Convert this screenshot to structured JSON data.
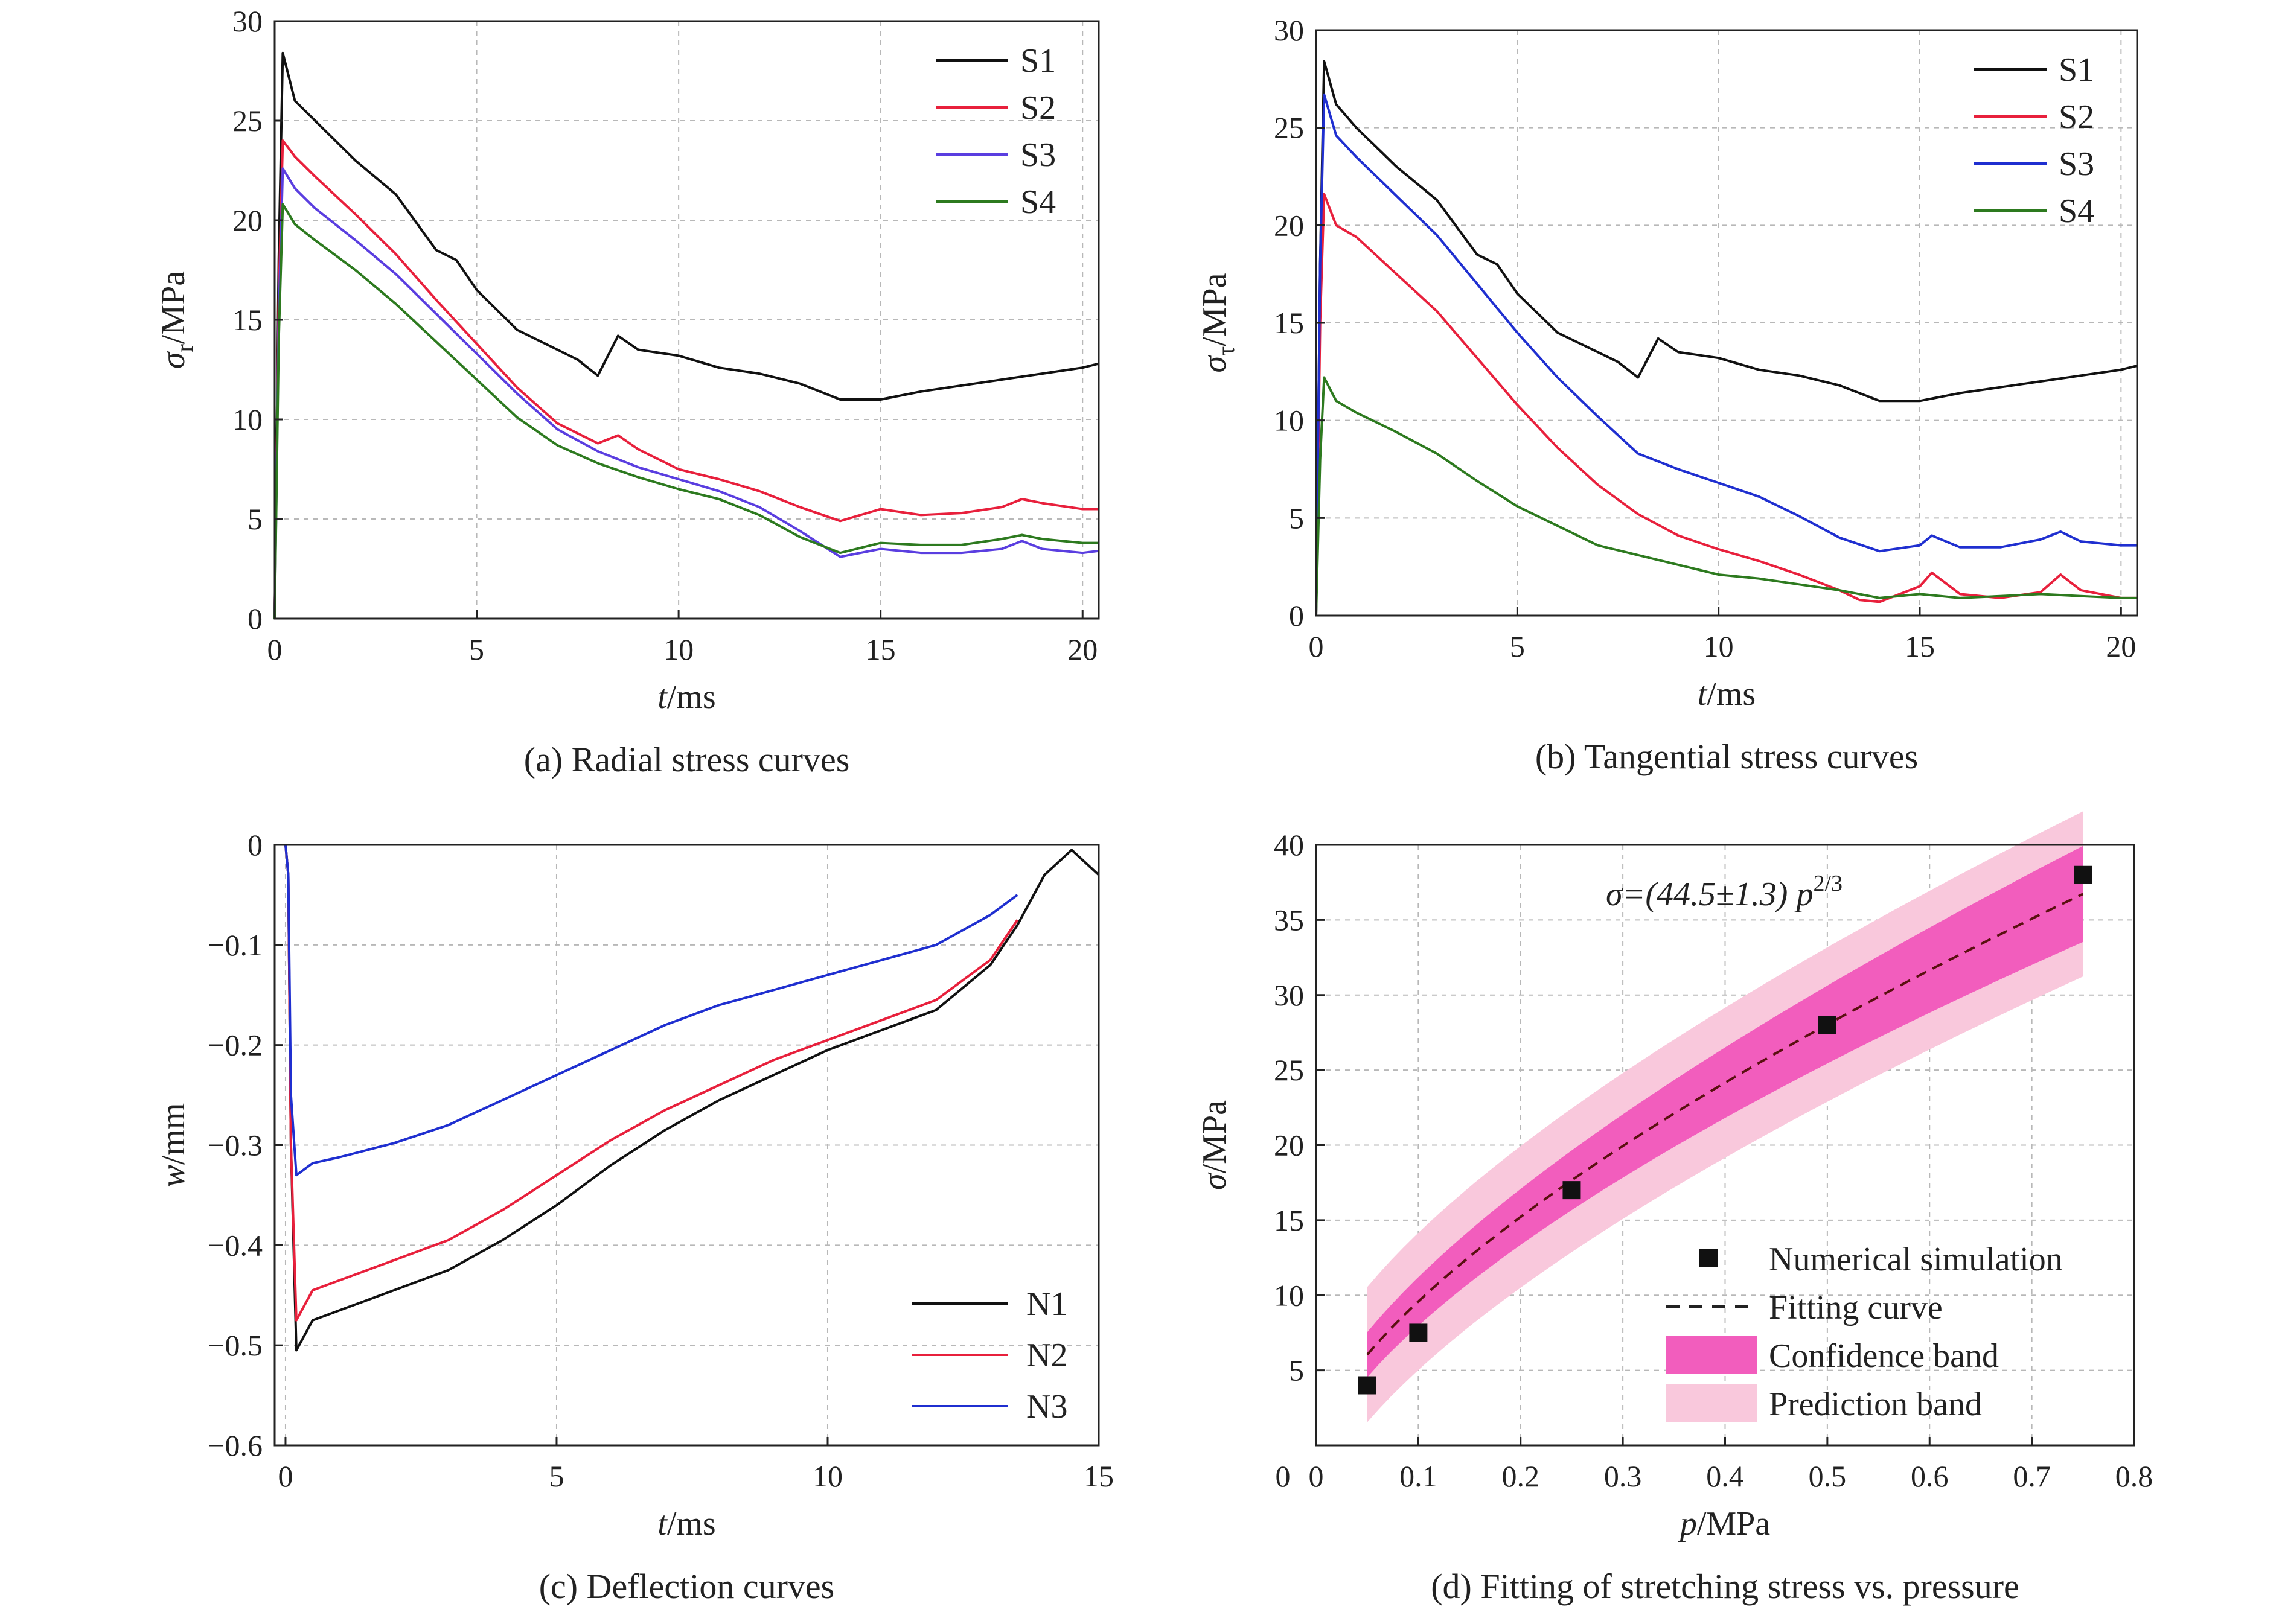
{
  "chart_data": [
    {
      "type": "line",
      "caption": "(a) Radial stress curves",
      "xlabel": "t/ms",
      "ylabel": "σr/MPa",
      "xlim": [
        0,
        20.4
      ],
      "ylim": [
        0,
        30
      ],
      "xticks": [
        "0",
        "5",
        "10",
        "15",
        "20"
      ],
      "yticks": [
        "0",
        "5",
        "10",
        "15",
        "20",
        "25",
        "30"
      ],
      "grid": true,
      "legend_position": "top-right",
      "series": [
        {
          "name": "S1",
          "color": "#111111",
          "x": [
            0,
            0.1,
            0.2,
            0.5,
            1,
            2,
            3,
            4,
            4.5,
            5,
            6,
            7,
            7.5,
            8,
            8.5,
            9,
            10,
            11,
            12,
            13,
            14,
            15,
            16,
            17,
            18,
            19,
            20,
            20.4
          ],
          "y": [
            0,
            18,
            28.4,
            26,
            25,
            23,
            21.3,
            18.5,
            18,
            16.5,
            14.5,
            13.5,
            13,
            12.2,
            14.2,
            13.5,
            13.2,
            12.6,
            12.3,
            11.8,
            11,
            11,
            11.4,
            11.7,
            12,
            12.3,
            12.6,
            12.8
          ]
        },
        {
          "name": "S2",
          "color": "#e8203c",
          "x": [
            0,
            0.1,
            0.2,
            0.5,
            1,
            2,
            3,
            4,
            5,
            6,
            7,
            8,
            8.5,
            9,
            10,
            11,
            12,
            13,
            14,
            15,
            16,
            17,
            18,
            18.5,
            19,
            20,
            20.4
          ],
          "y": [
            0,
            16,
            24,
            23.2,
            22.2,
            20.3,
            18.3,
            16,
            13.8,
            11.6,
            9.8,
            8.8,
            9.2,
            8.5,
            7.5,
            7,
            6.4,
            5.6,
            4.9,
            5.5,
            5.2,
            5.3,
            5.6,
            6,
            5.8,
            5.5,
            5.5
          ]
        },
        {
          "name": "S3",
          "color": "#5a3ee0",
          "x": [
            0,
            0.1,
            0.2,
            0.5,
            1,
            2,
            3,
            4,
            5,
            6,
            7,
            8,
            9,
            10,
            11,
            12,
            13,
            14,
            15,
            16,
            17,
            18,
            18.5,
            19,
            20,
            20.4
          ],
          "y": [
            0,
            15,
            22.6,
            21.6,
            20.6,
            19,
            17.3,
            15.3,
            13.3,
            11.3,
            9.5,
            8.4,
            7.6,
            7,
            6.4,
            5.6,
            4.4,
            3.1,
            3.5,
            3.3,
            3.3,
            3.5,
            3.9,
            3.5,
            3.3,
            3.4
          ]
        },
        {
          "name": "S4",
          "color": "#2d7a1f",
          "x": [
            0,
            0.1,
            0.2,
            0.5,
            1,
            2,
            3,
            4,
            5,
            6,
            7,
            8,
            9,
            10,
            11,
            12,
            13,
            14,
            15,
            16,
            17,
            18,
            18.5,
            19,
            20,
            20.4
          ],
          "y": [
            0,
            14,
            20.8,
            19.8,
            19,
            17.5,
            15.8,
            13.9,
            12,
            10.1,
            8.7,
            7.8,
            7.1,
            6.5,
            6,
            5.2,
            4.1,
            3.3,
            3.8,
            3.7,
            3.7,
            4,
            4.2,
            4,
            3.8,
            3.8
          ]
        }
      ]
    },
    {
      "type": "line",
      "caption": "(b) Tangential stress curves",
      "xlabel": "t/ms",
      "ylabel": "στ/MPa",
      "xlim": [
        0,
        20.4
      ],
      "ylim": [
        0,
        30
      ],
      "xticks": [
        "0",
        "5",
        "10",
        "15",
        "20"
      ],
      "yticks": [
        "0",
        "5",
        "10",
        "15",
        "20",
        "25",
        "30"
      ],
      "grid": true,
      "legend_position": "top-right",
      "series": [
        {
          "name": "S1",
          "color": "#111111",
          "x": [
            0,
            0.1,
            0.2,
            0.5,
            1,
            2,
            3,
            4,
            4.5,
            5,
            6,
            7,
            7.5,
            8,
            8.5,
            9,
            10,
            11,
            12,
            13,
            14,
            15,
            16,
            17,
            18,
            19,
            20,
            20.4
          ],
          "y": [
            0,
            18,
            28.4,
            26.2,
            25,
            23,
            21.3,
            18.5,
            18,
            16.5,
            14.5,
            13.5,
            13,
            12.2,
            14.2,
            13.5,
            13.2,
            12.6,
            12.3,
            11.8,
            11,
            11,
            11.4,
            11.7,
            12,
            12.3,
            12.6,
            12.8
          ]
        },
        {
          "name": "S2",
          "color": "#e8203c",
          "x": [
            0,
            0.1,
            0.2,
            0.5,
            1,
            2,
            3,
            4,
            5,
            6,
            7,
            8,
            9,
            10,
            11,
            12,
            13,
            13.5,
            14,
            15,
            15.3,
            16,
            17,
            18,
            18.5,
            19,
            20,
            20.4
          ],
          "y": [
            0,
            15,
            21.6,
            20,
            19.4,
            17.5,
            15.6,
            13.2,
            10.8,
            8.6,
            6.7,
            5.2,
            4.1,
            3.4,
            2.8,
            2.1,
            1.3,
            0.8,
            0.7,
            1.5,
            2.2,
            1.1,
            0.9,
            1.2,
            2.1,
            1.3,
            0.9,
            0.9
          ]
        },
        {
          "name": "S3",
          "color": "#1f2fd0",
          "x": [
            0,
            0.1,
            0.2,
            0.5,
            1,
            2,
            3,
            4,
            5,
            6,
            7,
            8,
            9,
            10,
            11,
            12,
            13,
            14,
            15,
            15.3,
            16,
            17,
            18,
            18.5,
            19,
            20,
            20.4
          ],
          "y": [
            0,
            18,
            26.7,
            24.6,
            23.5,
            21.5,
            19.5,
            17,
            14.5,
            12.2,
            10.2,
            8.3,
            7.5,
            6.8,
            6.1,
            5.1,
            4,
            3.3,
            3.6,
            4.1,
            3.5,
            3.5,
            3.9,
            4.3,
            3.8,
            3.6,
            3.6
          ]
        },
        {
          "name": "S4",
          "color": "#2d7a1f",
          "x": [
            0,
            0.1,
            0.2,
            0.5,
            1,
            2,
            3,
            4,
            5,
            6,
            7,
            8,
            9,
            10,
            11,
            12,
            13,
            14,
            15,
            16,
            17,
            18,
            19,
            20,
            20.4
          ],
          "y": [
            0,
            8,
            12.2,
            11,
            10.4,
            9.4,
            8.3,
            6.9,
            5.6,
            4.6,
            3.6,
            3.1,
            2.6,
            2.1,
            1.9,
            1.6,
            1.3,
            0.9,
            1.1,
            0.9,
            1,
            1.1,
            1,
            0.9,
            0.9
          ]
        }
      ]
    },
    {
      "type": "line",
      "caption": "(c) Deflection curves",
      "xlabel": "t/ms",
      "ylabel": "w/mm",
      "xlim": [
        -0.2,
        15
      ],
      "ylim": [
        -0.6,
        0
      ],
      "xticks": [
        "0",
        "5",
        "10",
        "15"
      ],
      "yticks": [
        "0",
        "−0.1",
        "−0.2",
        "−0.3",
        "−0.4",
        "−0.5",
        "−0.6"
      ],
      "grid": true,
      "legend_position": "bottom-right",
      "series": [
        {
          "name": "N1",
          "color": "#111111",
          "x": [
            0,
            0.05,
            0.1,
            0.2,
            0.5,
            1,
            2,
            3,
            4,
            5,
            6,
            7,
            8,
            9,
            10,
            11,
            12,
            13,
            13.5,
            14,
            14.5,
            15
          ],
          "y": [
            0,
            -0.03,
            -0.3,
            -0.505,
            -0.475,
            -0.465,
            -0.445,
            -0.425,
            -0.395,
            -0.36,
            -0.32,
            -0.285,
            -0.255,
            -0.23,
            -0.205,
            -0.185,
            -0.165,
            -0.12,
            -0.08,
            -0.03,
            -0.005,
            -0.03
          ]
        },
        {
          "name": "N2",
          "color": "#e8203c",
          "x": [
            0,
            0.05,
            0.1,
            0.2,
            0.5,
            1,
            2,
            3,
            4,
            5,
            6,
            7,
            8,
            9,
            10,
            11,
            12,
            13,
            13.5
          ],
          "y": [
            0,
            -0.03,
            -0.3,
            -0.475,
            -0.445,
            -0.435,
            -0.415,
            -0.395,
            -0.365,
            -0.33,
            -0.295,
            -0.265,
            -0.24,
            -0.215,
            -0.195,
            -0.175,
            -0.155,
            -0.115,
            -0.075
          ]
        },
        {
          "name": "N3",
          "color": "#1f2fd0",
          "x": [
            0,
            0.05,
            0.1,
            0.2,
            0.5,
            1,
            2,
            3,
            4,
            5,
            6,
            7,
            8,
            9,
            10,
            11,
            12,
            13,
            13.5
          ],
          "y": [
            0,
            -0.03,
            -0.25,
            -0.33,
            -0.318,
            -0.312,
            -0.298,
            -0.28,
            -0.255,
            -0.23,
            -0.205,
            -0.18,
            -0.16,
            -0.145,
            -0.13,
            -0.115,
            -0.1,
            -0.07,
            -0.05
          ]
        }
      ]
    },
    {
      "type": "scatter",
      "caption": "(d) Fitting of stretching stress vs. pressure",
      "xlabel": "p/MPa",
      "ylabel": "σ/MPa",
      "xlim": [
        0,
        0.8
      ],
      "ylim": [
        0,
        40
      ],
      "xticks": [
        "0",
        "0.1",
        "0.2",
        "0.3",
        "0.4",
        "0.5",
        "0.6",
        "0.7",
        "0.8"
      ],
      "yticks": [
        "5",
        "10",
        "15",
        "20",
        "25",
        "30",
        "35",
        "40"
      ],
      "grid": true,
      "legend_position": "bottom-right",
      "annotation": {
        "prefix": "σ=(44.5±1.3) ",
        "var": "p",
        "sup": "2/3"
      },
      "fit": {
        "coef": 44.5,
        "coef_ci": 1.3,
        "exponent": 0.6667,
        "x_range": [
          0.05,
          0.75
        ],
        "color": "#5a1010"
      },
      "series": [
        {
          "name": "Numerical simulation",
          "marker": "square",
          "color": "#111111",
          "x": [
            0.05,
            0.1,
            0.25,
            0.5,
            0.75
          ],
          "y": [
            4,
            7.5,
            17,
            28,
            38
          ]
        },
        {
          "name": "Fitting curve",
          "style": "dashed",
          "color": "#5a1010"
        },
        {
          "name": "Confidence band",
          "color": "#f25dbd",
          "half_width_lo": 1.5,
          "half_width_hi": 3.2
        },
        {
          "name": "Prediction band",
          "color": "#f9c8dc",
          "half_width_lo": 4.5,
          "half_width_hi": 5.5
        }
      ]
    }
  ]
}
